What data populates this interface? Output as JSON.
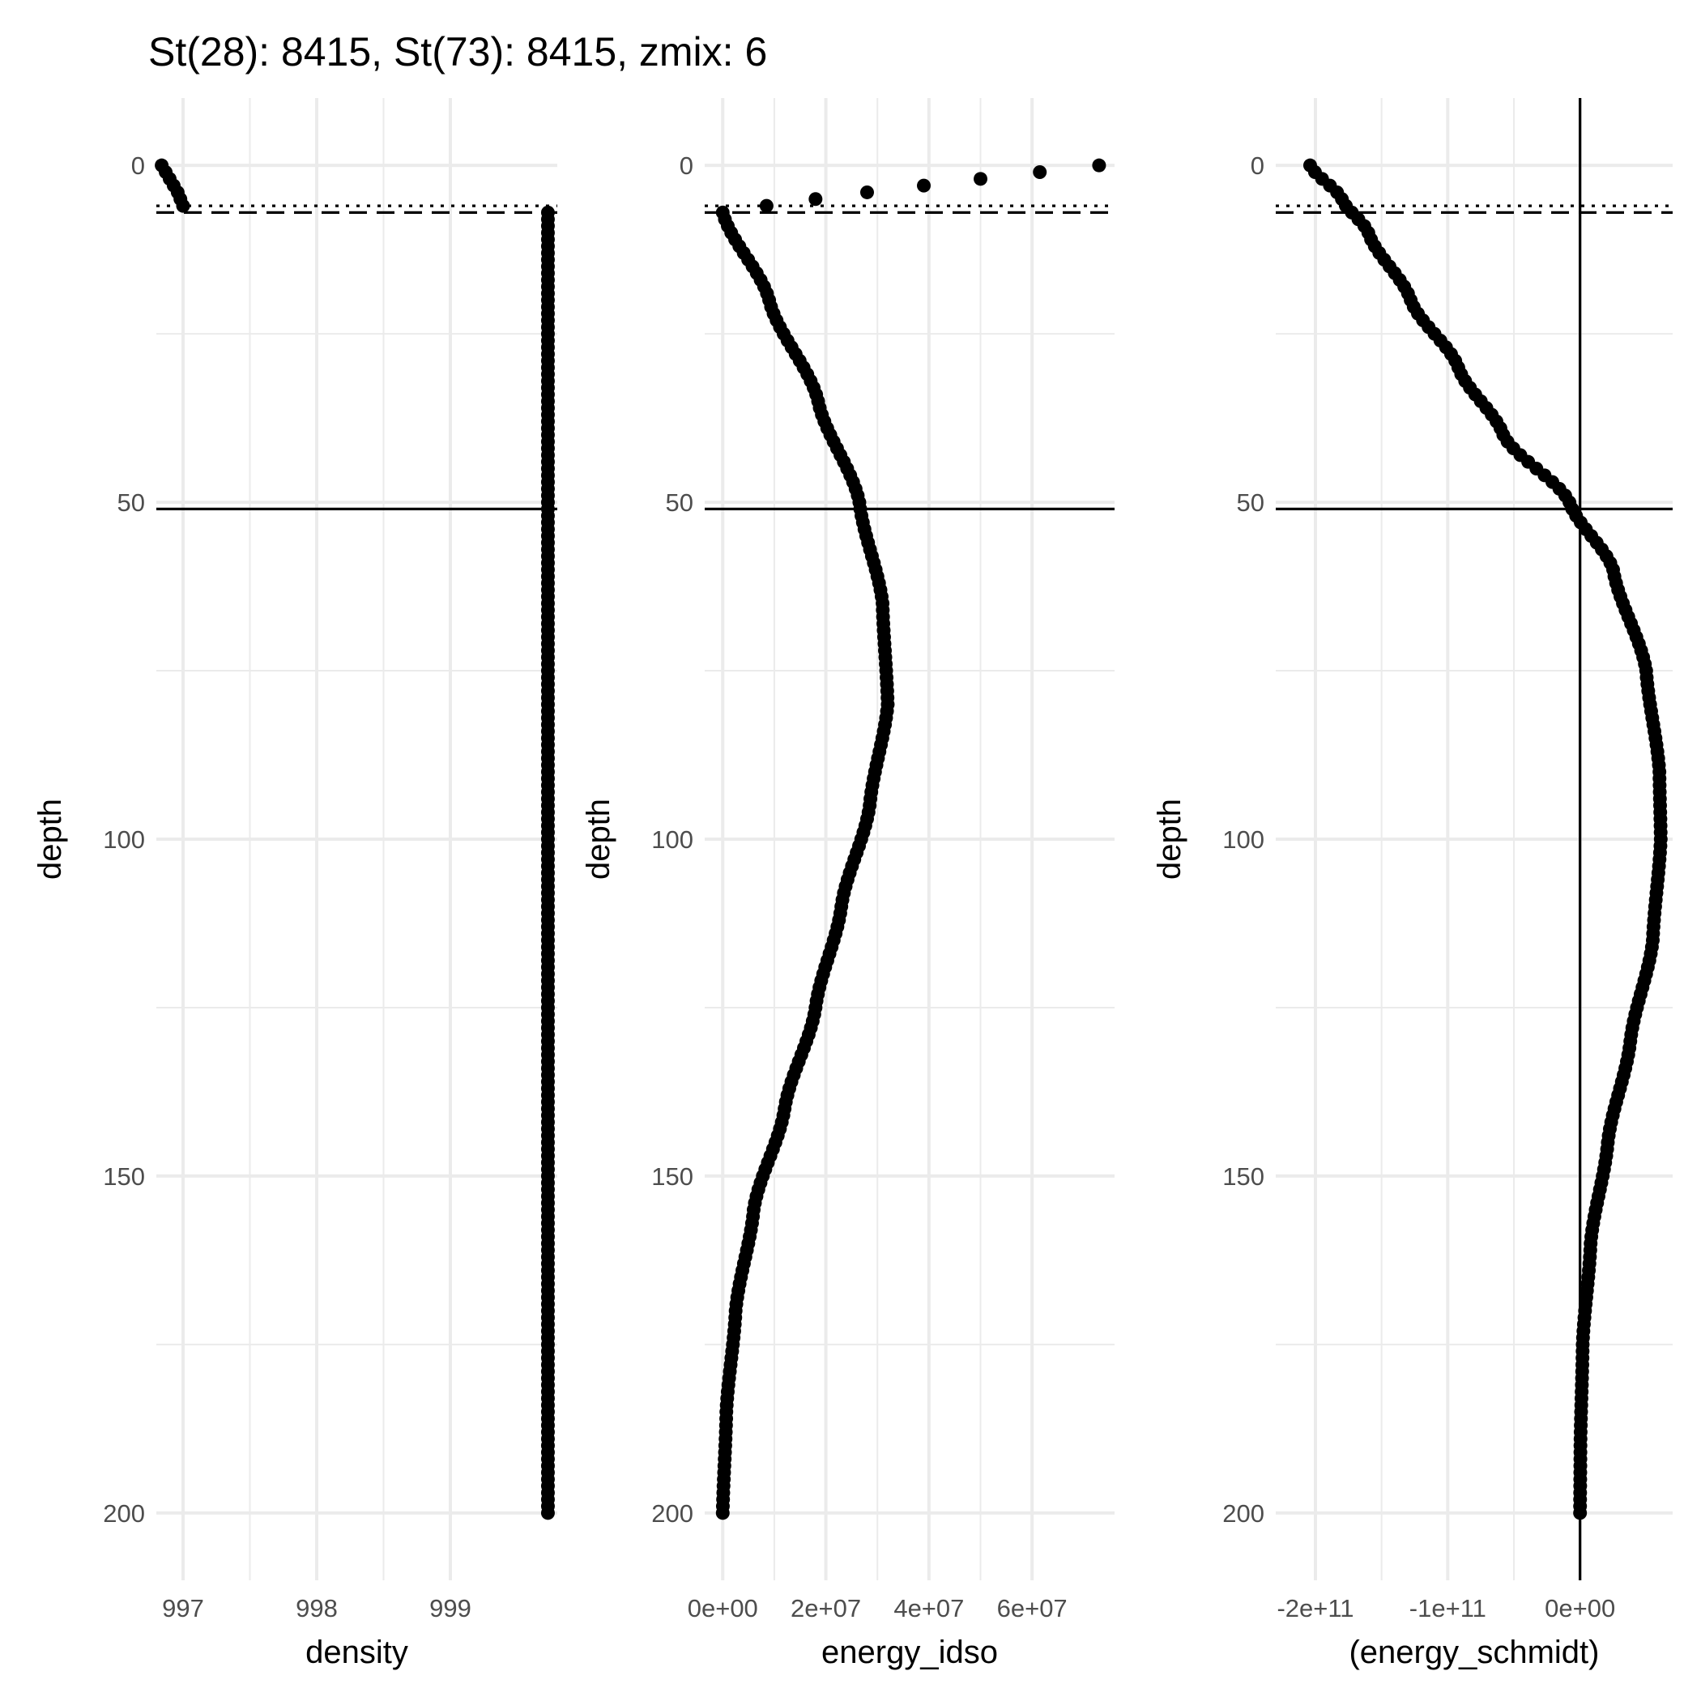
{
  "title": "St(28): 8415, St(73): 8415, zmix: 6",
  "chart_data": [
    {
      "type": "scatter",
      "xlabel": "density",
      "ylabel": "depth",
      "y_reversed": true,
      "ylim": [
        210,
        -10
      ],
      "xlim": [
        996.8,
        999.8
      ],
      "x_ticks": [
        997,
        998,
        999
      ],
      "x_tick_labels": [
        "997",
        "998",
        "999"
      ],
      "y_ticks": [
        0,
        50,
        100,
        150,
        200
      ],
      "y_tick_labels": [
        "0",
        "50",
        "100",
        "150",
        "200"
      ],
      "grid": true,
      "reference_lines": [
        {
          "orientation": "horizontal",
          "value": 6,
          "style": "dotted"
        },
        {
          "orientation": "horizontal",
          "value": 7,
          "style": "dashed"
        },
        {
          "orientation": "horizontal",
          "value": 51,
          "style": "solid"
        }
      ],
      "series": [
        {
          "x": [
            996.84,
            996.87,
            996.9,
            996.93,
            996.96,
            996.98,
            997.0
          ],
          "y": [
            0,
            1,
            2,
            3,
            4,
            5,
            6
          ]
        },
        {
          "x_constant": 999.73,
          "y_range": [
            7,
            200
          ],
          "y_step": 1
        }
      ]
    },
    {
      "type": "scatter",
      "xlabel": "energy_idso",
      "ylabel": "depth",
      "y_reversed": true,
      "ylim": [
        210,
        -10
      ],
      "xlim": [
        -3500000,
        76000000
      ],
      "x_ticks": [
        0,
        20000000,
        40000000,
        60000000
      ],
      "x_tick_labels": [
        "0e+00",
        "2e+07",
        "4e+07",
        "6e+07"
      ],
      "y_ticks": [
        0,
        50,
        100,
        150,
        200
      ],
      "y_tick_labels": [
        "0",
        "50",
        "100",
        "150",
        "200"
      ],
      "grid": true,
      "reference_lines": [
        {
          "orientation": "horizontal",
          "value": 6,
          "style": "dotted"
        },
        {
          "orientation": "horizontal",
          "value": 7,
          "style": "dashed"
        },
        {
          "orientation": "horizontal",
          "value": 51,
          "style": "solid"
        }
      ],
      "series": [
        {
          "x": [
            73000000,
            61500000,
            50000000,
            39000000,
            28000000,
            18000000,
            8500000
          ],
          "y": [
            0,
            1,
            2,
            3,
            4,
            5,
            6
          ]
        },
        {
          "profile": [
            [
              7,
              0
            ],
            [
              20,
              9000000
            ],
            [
              35,
              18500000
            ],
            [
              50,
              26500000
            ],
            [
              65,
              31000000
            ],
            [
              80,
              32000000
            ],
            [
              95,
              28500000
            ],
            [
              110,
              23000000
            ],
            [
              125,
              18000000
            ],
            [
              140,
              12000000
            ],
            [
              155,
              6000000
            ],
            [
              170,
              2500000
            ],
            [
              185,
              700000
            ],
            [
              200,
              0
            ]
          ],
          "y_step": 1
        }
      ]
    },
    {
      "type": "scatter",
      "xlabel": "(energy_schmidt)",
      "ylabel": "depth",
      "y_reversed": true,
      "ylim": [
        210,
        -10
      ],
      "xlim": [
        -230000000000,
        70000000000
      ],
      "x_ticks": [
        -200000000000,
        -100000000000,
        0
      ],
      "x_tick_labels": [
        "-2e+11",
        "-1e+11",
        "0e+00"
      ],
      "y_ticks": [
        0,
        50,
        100,
        150,
        200
      ],
      "y_tick_labels": [
        "0",
        "50",
        "100",
        "150",
        "200"
      ],
      "grid": true,
      "reference_lines": [
        {
          "orientation": "horizontal",
          "value": 6,
          "style": "dotted"
        },
        {
          "orientation": "horizontal",
          "value": 7,
          "style": "dashed"
        },
        {
          "orientation": "horizontal",
          "value": 51,
          "style": "solid"
        },
        {
          "orientation": "vertical",
          "value": 0,
          "style": "solid"
        }
      ],
      "series": [
        {
          "profile": [
            [
              0,
              -204000000000
            ],
            [
              5,
              -180000000000
            ],
            [
              10,
              -160000000000
            ],
            [
              20,
              -128000000000
            ],
            [
              30,
              -92000000000
            ],
            [
              40,
              -58000000000
            ],
            [
              50,
              -8000000000
            ],
            [
              60,
              25000000000
            ],
            [
              75,
              50000000000
            ],
            [
              90,
              60000000000
            ],
            [
              100,
              61000000000
            ],
            [
              115,
              55000000000
            ],
            [
              130,
              38000000000
            ],
            [
              145,
              21000000000
            ],
            [
              160,
              8000000000
            ],
            [
              175,
              2000000000
            ],
            [
              190,
              300000000
            ],
            [
              200,
              0
            ]
          ],
          "y_step": 1
        }
      ]
    }
  ]
}
